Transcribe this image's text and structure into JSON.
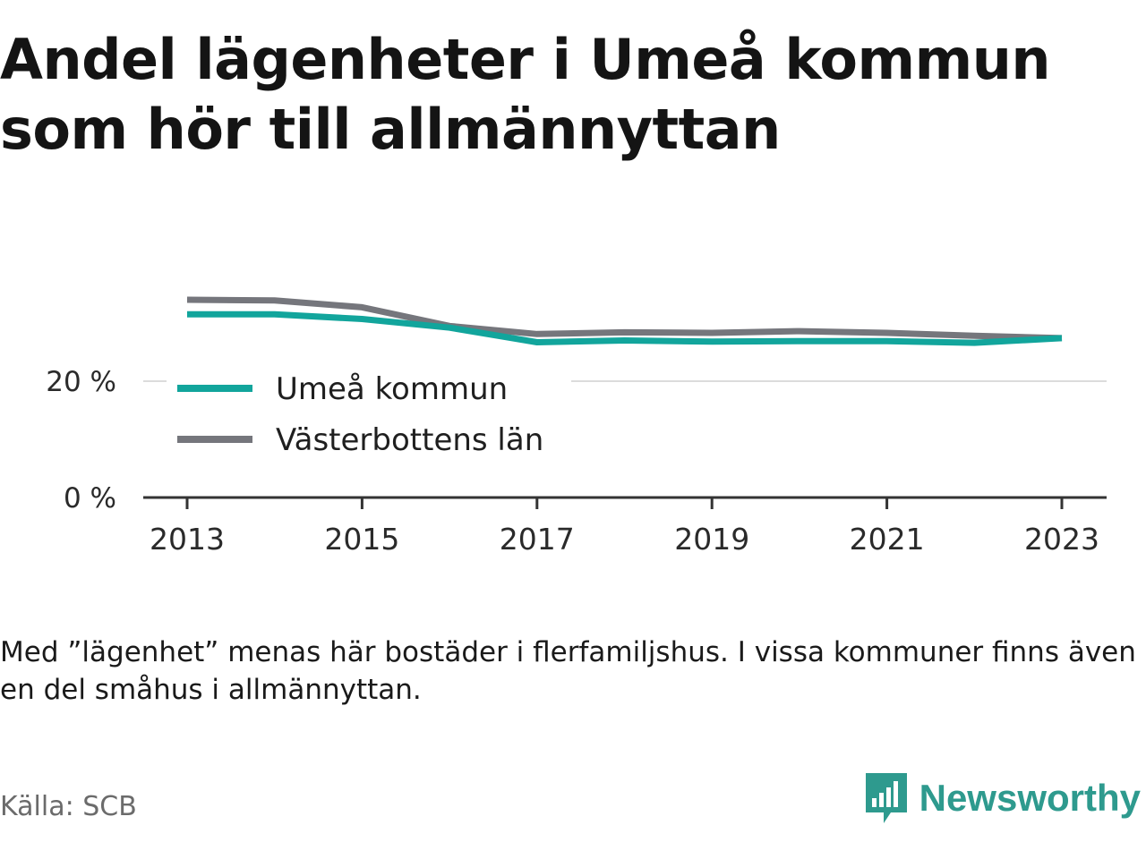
{
  "title": {
    "line1": "Andel lägenheter i Umeå kommun",
    "line2": "som hör till allmännyttan"
  },
  "note": "Med ”lägenhet” menas här bostäder i flerfamiljshus. I vissa kommuner finns även en del småhus i allmännyttan.",
  "source": "Källa: SCB",
  "brand": {
    "name": "Newsworthy",
    "icon": "newsworthy-logo-icon",
    "color": "#2e9a8e"
  },
  "chart_data": {
    "type": "line",
    "x": [
      2013,
      2014,
      2015,
      2016,
      2017,
      2018,
      2019,
      2020,
      2021,
      2022,
      2023
    ],
    "x_ticks": [
      "2013",
      "2015",
      "2017",
      "2019",
      "2021",
      "2023"
    ],
    "y_ticks": [
      {
        "value": 0,
        "label": "0 %"
      },
      {
        "value": 20,
        "label": "20 %"
      }
    ],
    "ylim": [
      0,
      35
    ],
    "grid": "horizontal",
    "legend_position": "left",
    "series": [
      {
        "name": "Umeå kommun",
        "color": "#12a59c",
        "values": [
          31.5,
          31.5,
          30.7,
          29.2,
          26.7,
          27.0,
          26.8,
          26.9,
          26.9,
          26.6,
          27.4
        ]
      },
      {
        "name": "Västerbottens län",
        "color": "#75767c",
        "values": [
          34.0,
          33.9,
          32.7,
          29.5,
          28.1,
          28.4,
          28.3,
          28.6,
          28.3,
          27.8,
          27.4
        ]
      }
    ]
  }
}
